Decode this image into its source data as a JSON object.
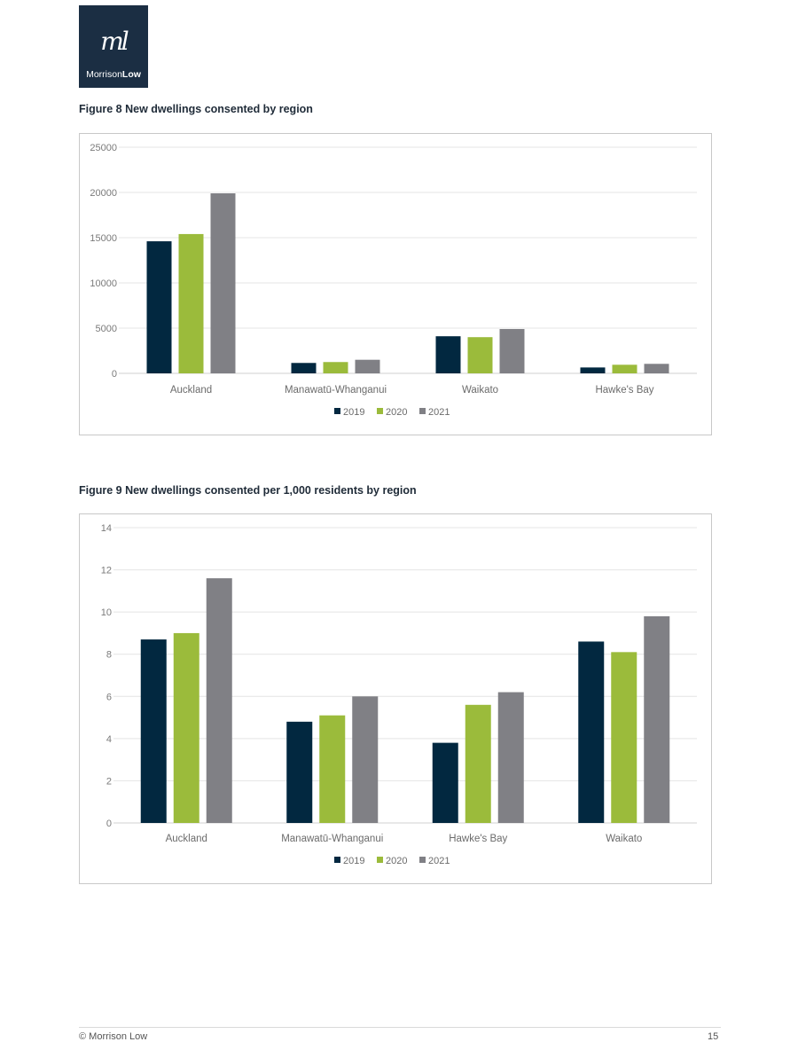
{
  "logo": {
    "mark": "ml",
    "brand_first": "Morrison",
    "brand_second": "Low"
  },
  "footer": {
    "copyright": "© Morrison Low",
    "page_number": "15"
  },
  "colors": {
    "2019": "#022840",
    "2020": "#9bbb3b",
    "2021": "#808085",
    "grid": "#e4e4e4"
  },
  "chart_data": [
    {
      "type": "bar",
      "title": "Figure 8 New dwellings consented by region",
      "categories": [
        "Auckland",
        "Manawatū-Whanganui",
        "Waikato",
        "Hawke's Bay"
      ],
      "series": [
        {
          "name": "2019",
          "values": [
            14600,
            1150,
            4100,
            650
          ]
        },
        {
          "name": "2020",
          "values": [
            15400,
            1250,
            4000,
            950
          ]
        },
        {
          "name": "2021",
          "values": [
            19900,
            1500,
            4900,
            1050
          ]
        }
      ],
      "yticks": [
        "0",
        "5000",
        "10000",
        "15000",
        "20000",
        "25000"
      ],
      "ylim": [
        0,
        25000
      ],
      "grid": true,
      "legend": "bottom"
    },
    {
      "type": "bar",
      "title": "Figure 9 New dwellings consented per 1,000 residents by region",
      "categories": [
        "Auckland",
        "Manawatū-Whanganui",
        "Hawke's Bay",
        "Waikato"
      ],
      "series": [
        {
          "name": "2019",
          "values": [
            8.7,
            4.8,
            3.8,
            8.6
          ]
        },
        {
          "name": "2020",
          "values": [
            9.0,
            5.1,
            5.6,
            8.1
          ]
        },
        {
          "name": "2021",
          "values": [
            11.6,
            6.0,
            6.2,
            9.8
          ]
        }
      ],
      "yticks": [
        "0",
        "2",
        "4",
        "6",
        "8",
        "10",
        "12",
        "14"
      ],
      "ylim": [
        0,
        14
      ],
      "grid": true,
      "legend": "bottom"
    }
  ]
}
